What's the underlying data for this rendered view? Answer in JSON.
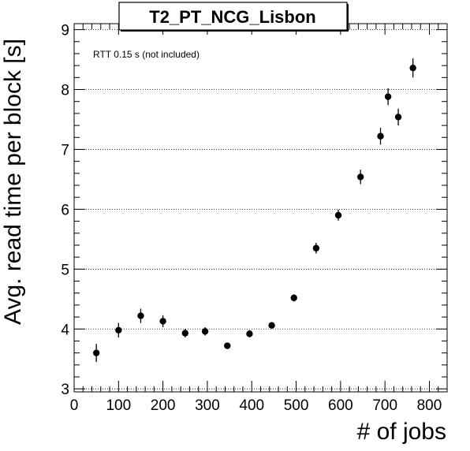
{
  "chart_data": {
    "type": "scatter",
    "title": "T2_PT_NCG_Lisbon",
    "xlabel": "# of jobs",
    "ylabel": "Avg. read time per block [s]",
    "annotation": "RTT 0.15 s (not included)",
    "xlim": [
      0,
      840
    ],
    "ylim": [
      2.95,
      9.1
    ],
    "x_ticks": [
      0,
      100,
      200,
      300,
      400,
      500,
      600,
      700,
      800
    ],
    "y_ticks": [
      3,
      4,
      5,
      6,
      7,
      8,
      9
    ],
    "grid": "horizontal-dotted",
    "x": [
      50,
      100,
      150,
      200,
      250,
      295,
      345,
      395,
      445,
      495,
      545,
      595,
      645,
      690,
      707,
      730,
      763
    ],
    "y": [
      3.6,
      3.98,
      4.22,
      4.13,
      3.93,
      3.96,
      3.72,
      3.92,
      4.06,
      4.52,
      5.35,
      5.9,
      6.54,
      7.22,
      7.88,
      7.54,
      8.36
    ],
    "yerr": [
      0.15,
      0.12,
      0.12,
      0.1,
      0.07,
      0.07,
      0.04,
      0.06,
      0.05,
      0.06,
      0.09,
      0.09,
      0.12,
      0.14,
      0.14,
      0.14,
      0.16
    ],
    "marker_color": "#000000"
  }
}
